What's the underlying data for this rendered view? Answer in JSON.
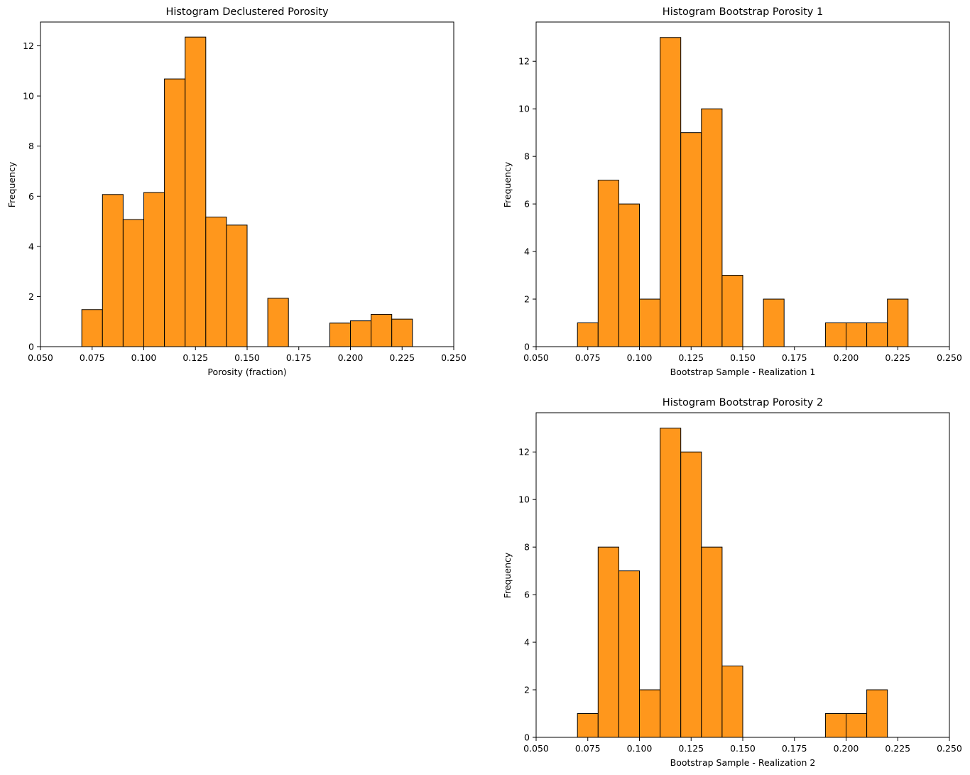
{
  "chart_data": [
    {
      "type": "bar",
      "title": "Histogram Declustered Porosity",
      "xlabel": "Porosity (fraction)",
      "ylabel": "Frequency",
      "xlim": [
        0.05,
        0.25
      ],
      "ylim": [
        0,
        12.95
      ],
      "xticks": [
        "0.050",
        "0.075",
        "0.100",
        "0.125",
        "0.150",
        "0.175",
        "0.200",
        "0.225",
        "0.250"
      ],
      "yticks": [
        "0",
        "2",
        "4",
        "6",
        "8",
        "10",
        "12"
      ],
      "bin_edges": [
        0.07,
        0.08,
        0.09,
        0.1,
        0.11,
        0.12,
        0.13,
        0.14,
        0.15,
        0.16,
        0.17,
        0.18,
        0.19,
        0.2,
        0.21,
        0.22,
        0.23
      ],
      "values": [
        1.48,
        6.07,
        5.07,
        6.15,
        10.68,
        12.35,
        5.17,
        4.85,
        0,
        1.93,
        0,
        0,
        0.94,
        1.03,
        1.29,
        1.1
      ],
      "color": "#ff971c"
    },
    {
      "type": "bar",
      "title": "Histogram Bootstrap Porosity 1",
      "xlabel": "Bootstrap Sample - Realization 1",
      "ylabel": "Frequency",
      "xlim": [
        0.05,
        0.25
      ],
      "ylim": [
        0,
        13.65
      ],
      "xticks": [
        "0.050",
        "0.075",
        "0.100",
        "0.125",
        "0.150",
        "0.175",
        "0.200",
        "0.225",
        "0.250"
      ],
      "yticks": [
        "0",
        "2",
        "4",
        "6",
        "8",
        "10",
        "12"
      ],
      "bin_edges": [
        0.07,
        0.08,
        0.09,
        0.1,
        0.11,
        0.12,
        0.13,
        0.14,
        0.15,
        0.16,
        0.17,
        0.18,
        0.19,
        0.2,
        0.21,
        0.22,
        0.23
      ],
      "values": [
        1,
        7,
        6,
        2,
        13,
        9,
        10,
        3,
        0,
        2,
        0,
        0,
        1,
        1,
        1,
        2
      ],
      "color": "#ff971c"
    },
    {
      "type": "bar",
      "title": "Histogram Bootstrap Porosity 2",
      "xlabel": "Bootstrap Sample - Realization 2",
      "ylabel": "Frequency",
      "xlim": [
        0.05,
        0.25
      ],
      "ylim": [
        0,
        13.65
      ],
      "xticks": [
        "0.050",
        "0.075",
        "0.100",
        "0.125",
        "0.150",
        "0.175",
        "0.200",
        "0.225",
        "0.250"
      ],
      "yticks": [
        "0",
        "2",
        "4",
        "6",
        "8",
        "10",
        "12"
      ],
      "bin_edges": [
        0.07,
        0.08,
        0.09,
        0.1,
        0.11,
        0.12,
        0.13,
        0.14,
        0.15,
        0.16,
        0.17,
        0.18,
        0.19,
        0.2,
        0.21,
        0.22
      ],
      "values": [
        1,
        8,
        7,
        2,
        13,
        12,
        8,
        3,
        0,
        0,
        0,
        0,
        1,
        1,
        2
      ],
      "color": "#ff971c"
    }
  ]
}
